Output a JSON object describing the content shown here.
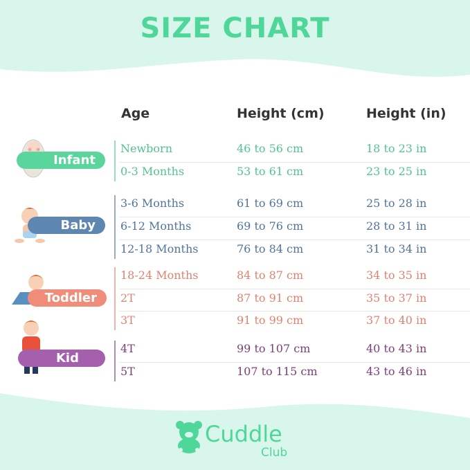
{
  "title": "SIZE CHART",
  "headers": {
    "age": "Age",
    "cm": "Height (cm)",
    "in": "Height (in)"
  },
  "colors": {
    "mint": "#d9f6ec",
    "green": "#4fd699",
    "infant": "#52c48d",
    "baby": "#52739a",
    "toddler": "#de8270",
    "kid": "#7b3f78"
  },
  "groups": [
    {
      "label": "Infant",
      "rows": [
        [
          "Newborn",
          "46 to 56 cm",
          "18 to 23 in"
        ],
        [
          "0-3 Months",
          "53 to 61 cm",
          "23 to 25 in"
        ]
      ]
    },
    {
      "label": "Baby",
      "rows": [
        [
          "3-6 Months",
          "61 to 69 cm",
          "25 to 28 in"
        ],
        [
          "6-12 Months",
          "69 to 76 cm",
          "28 to 31 in"
        ],
        [
          "12-18 Months",
          "76 to 84 cm",
          "31 to 34 in"
        ]
      ]
    },
    {
      "label": "Toddler",
      "rows": [
        [
          "18-24 Months",
          "84 to 87 cm",
          "34 to 35 in"
        ],
        [
          "2T",
          "87 to 91 cm",
          "35 to 37 in"
        ],
        [
          "3T",
          "91 to 99 cm",
          "37 to 40 in"
        ]
      ]
    },
    {
      "label": "Kid",
      "rows": [
        [
          "4T",
          "99 to 107 cm",
          "40 to 43 in"
        ],
        [
          "5T",
          "107 to 115 cm",
          "43 to 46 in"
        ]
      ]
    }
  ],
  "logo": {
    "name": "Cuddle",
    "sub": "Club",
    "icon": "teddy-bear-icon"
  }
}
